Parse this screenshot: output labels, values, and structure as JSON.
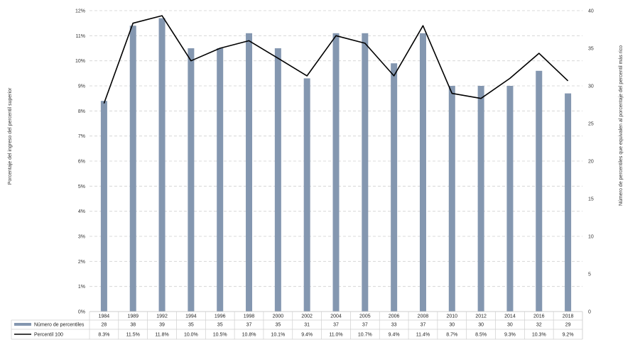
{
  "chart_data": {
    "type": "bar",
    "categories": [
      "1984",
      "1989",
      "1992",
      "1994",
      "1996",
      "1998",
      "2000",
      "2002",
      "2004",
      "2005",
      "2006",
      "2008",
      "2010",
      "2012",
      "2014",
      "2016",
      "2018"
    ],
    "series": [
      {
        "name": "Número de percentiles",
        "type": "bar",
        "axis": "right",
        "color": "#8497b0",
        "values": [
          28,
          38,
          39,
          35,
          35,
          37,
          35,
          31,
          37,
          37,
          33,
          37,
          30,
          30,
          30,
          32,
          29
        ]
      },
      {
        "name": "Percentil 100",
        "type": "line",
        "axis": "left",
        "color": "#000000",
        "values": [
          8.3,
          11.5,
          11.8,
          10.0,
          10.5,
          10.8,
          10.1,
          9.4,
          11.0,
          10.7,
          9.4,
          11.4,
          8.7,
          8.5,
          9.3,
          10.3,
          9.2
        ],
        "labels": [
          "8.3%",
          "11.5%",
          "11.8%",
          "10.0%",
          "10.5%",
          "10.8%",
          "10.1%",
          "9.4%",
          "11.0%",
          "10.7%",
          "9.4%",
          "11.4%",
          "8.7%",
          "8.5%",
          "9.3%",
          "10.3%",
          "9.2%"
        ]
      }
    ],
    "y_left": {
      "label": "Porcentaje del ingreso del percentil superior",
      "range": [
        0,
        12
      ],
      "ticks": [
        "0%",
        "1%",
        "2%",
        "3%",
        "4%",
        "5%",
        "6%",
        "7%",
        "8%",
        "9%",
        "10%",
        "11%",
        "12%"
      ]
    },
    "y_right": {
      "label": "Número de percentiles que equivalen al porcentaje del percentil más rico",
      "range": [
        0,
        40
      ],
      "ticks": [
        "0",
        "5",
        "10",
        "15",
        "20",
        "25",
        "30",
        "35",
        "40"
      ]
    },
    "grid": "horizontal dashed",
    "legend": "data table below chart"
  }
}
